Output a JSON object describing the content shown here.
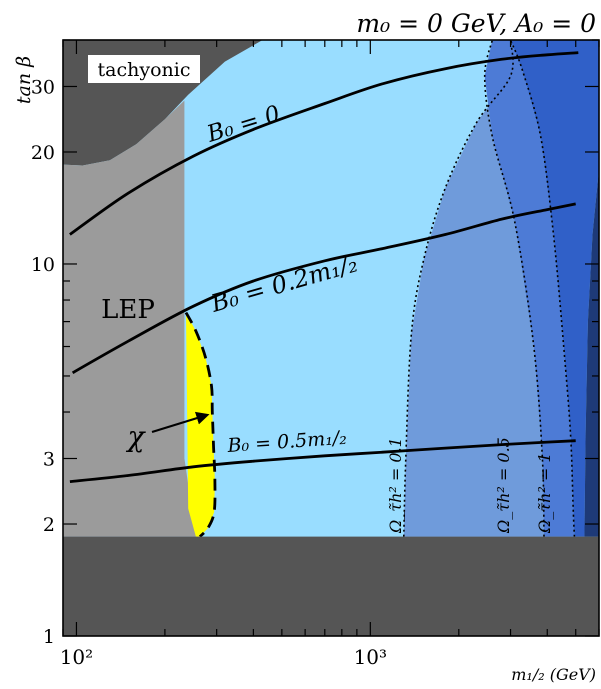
{
  "chart_data": {
    "type": "area",
    "title": "m₀ = 0 GeV, A₀ = 0",
    "xlabel": "m₁/₂ (GeV)",
    "ylabel": "tan β",
    "xscale": "log",
    "yscale": "log",
    "xlim": [
      90,
      6000
    ],
    "ylim": [
      1,
      40
    ],
    "x_ticks": [
      {
        "value": 100,
        "label": "10²"
      },
      {
        "value": 1000,
        "label": "10³"
      }
    ],
    "y_ticks": [
      {
        "value": 1,
        "label": "1"
      },
      {
        "value": 2,
        "label": "2"
      },
      {
        "value": 3,
        "label": "3"
      },
      {
        "value": 10,
        "label": "10"
      },
      {
        "value": 20,
        "label": "20"
      },
      {
        "value": 30,
        "label": "30"
      }
    ],
    "regions": [
      {
        "name": "tachyonic",
        "label": "tachyonic",
        "color": "#555555",
        "x": [
          90,
          90,
          105,
          130,
          160,
          200,
          240,
          320,
          430,
          6000
        ],
        "y": [
          40,
          18.5,
          18.4,
          19.0,
          21.0,
          24.5,
          28.5,
          35.0,
          40,
          40
        ]
      },
      {
        "name": "LEP",
        "label": "LEP",
        "color": "#9b9b9b",
        "x": [
          90,
          90,
          105,
          130,
          160,
          200,
          233,
          233,
          255,
          90
        ],
        "y": [
          1.85,
          18.5,
          18.4,
          19.0,
          21.0,
          24.5,
          27.5,
          3.0,
          1.85,
          1.85
        ]
      },
      {
        "name": "chi-lsp",
        "label": "χ",
        "color": "#ffff00",
        "x": [
          236,
          255,
          275,
          288,
          290,
          293,
          296,
          294,
          280,
          263,
          255,
          240,
          236
        ],
        "y": [
          7.4,
          6.6,
          5.6,
          4.7,
          4.0,
          3.2,
          2.6,
          2.15,
          1.95,
          1.85,
          1.85,
          2.2,
          7.4
        ]
      },
      {
        "name": "relic-0.1-0.5",
        "label": "Ω_τ̃h² = 0.1",
        "color": "#6f9bdb",
        "x": [
          1300,
          1320,
          1380,
          1520,
          1800,
          2300,
          3000,
          3000,
          2600,
          2450,
          2600,
          3100,
          3600,
          3850,
          3900
        ],
        "y": [
          1.85,
          3.0,
          6.5,
          10.3,
          16.0,
          24.0,
          32.0,
          40,
          40,
          32.0,
          22.0,
          13.0,
          6.0,
          3.0,
          1.85
        ]
      },
      {
        "name": "relic-0.5-1",
        "label": "Ω_τ̃h² = 0.5",
        "color": "#4d7bd6",
        "x": [
          3900,
          3850,
          3600,
          3100,
          2600,
          2450,
          2600,
          3000,
          3300,
          3800,
          4200,
          4550,
          4800,
          4900,
          4950
        ],
        "y": [
          1.85,
          3.0,
          6.0,
          13.0,
          22.0,
          32.0,
          40,
          40,
          33.0,
          22.0,
          12.0,
          6.0,
          3.5,
          2.2,
          1.85
        ]
      },
      {
        "name": "relic-1",
        "label": "Ω_τ̃h² = 1",
        "color": "#3060c8",
        "x": [
          4950,
          4900,
          4800,
          4550,
          4200,
          3800,
          3300,
          3000,
          6000,
          6000,
          5700,
          5500,
          5400,
          5350
        ],
        "y": [
          1.85,
          2.2,
          3.5,
          6.0,
          12.0,
          22.0,
          33.0,
          40,
          40,
          18.0,
          12.0,
          7.0,
          3.5,
          1.85
        ]
      },
      {
        "name": "relic-high",
        "color": "#1e3a78",
        "x": [
          5350,
          5400,
          5500,
          5700,
          6000,
          6000
        ],
        "y": [
          1.85,
          3.5,
          7.0,
          12.0,
          18.0,
          1.85
        ]
      }
    ],
    "series": [
      {
        "name": "B₀ = 0",
        "x": [
          95,
          150,
          250,
          400,
          700,
          1100,
          1800,
          2800,
          4000,
          5100
        ],
        "y": [
          12.0,
          15.5,
          19.5,
          23.0,
          27.0,
          30.5,
          33.5,
          35.5,
          36.5,
          37.0
        ]
      },
      {
        "name": "B₀ = 0.2m₁/₂",
        "x": [
          97,
          150,
          250,
          400,
          700,
          1100,
          1800,
          2800,
          4000,
          5000
        ],
        "y": [
          5.1,
          6.2,
          7.7,
          9.0,
          10.2,
          11.0,
          12.0,
          13.2,
          14.0,
          14.5
        ]
      },
      {
        "name": "B₀ = 0.5m₁/₂",
        "x": [
          95,
          150,
          250,
          400,
          700,
          1100,
          1800,
          2800,
          4000,
          5000
        ],
        "y": [
          2.6,
          2.7,
          2.85,
          2.95,
          3.05,
          3.12,
          3.2,
          3.27,
          3.32,
          3.35
        ]
      }
    ],
    "contours": [
      {
        "name": "relic-0.1",
        "label": "Ω_τ̃h² = 0.1",
        "style": "dotted",
        "x": [
          1300,
          1320,
          1380,
          1520,
          1800,
          2300,
          3000,
          3000
        ],
        "y": [
          1.85,
          3.0,
          6.5,
          10.3,
          16.0,
          24.0,
          32.0,
          40
        ]
      },
      {
        "name": "relic-0.5",
        "label": "Ω_τ̃h² = 0.5",
        "style": "dotted",
        "x": [
          3900,
          3850,
          3600,
          3100,
          2600,
          2450,
          2600
        ],
        "y": [
          1.85,
          3.0,
          6.0,
          13.0,
          22.0,
          32.0,
          40
        ]
      },
      {
        "name": "relic-1",
        "label": "Ω_τ̃h² = 1",
        "style": "dotted",
        "x": [
          4950,
          4900,
          4800,
          4550,
          4200,
          3800,
          3300,
          3000
        ],
        "y": [
          1.85,
          2.2,
          3.5,
          6.0,
          12.0,
          22.0,
          33.0,
          40
        ]
      },
      {
        "name": "chi-boundary",
        "label": "χ",
        "style": "dashed",
        "x": [
          236,
          255,
          275,
          288,
          290,
          293,
          296,
          294,
          280,
          263
        ],
        "y": [
          7.4,
          6.6,
          5.6,
          4.7,
          4.0,
          3.2,
          2.6,
          2.15,
          1.95,
          1.85
        ]
      }
    ],
    "bottom_excluded_region": {
      "color": "#555555",
      "y_range": [
        1,
        1.85
      ]
    },
    "annotations": [
      {
        "name": "tachyonic-label",
        "text": "tachyonic"
      },
      {
        "name": "lep-label",
        "text": "LEP"
      },
      {
        "name": "chi-label",
        "text": "χ"
      },
      {
        "name": "b0-zero-label",
        "text": "B₀ = 0"
      },
      {
        "name": "b0-02-label",
        "text": "B₀ = 0.2m₁/₂"
      },
      {
        "name": "b0-05-label",
        "text": "B₀ = 0.5m₁/₂"
      },
      {
        "name": "omega-01-label",
        "text": "Ω_τ̃h² = 0.1"
      },
      {
        "name": "omega-05-label",
        "text": "Ω_τ̃h² = 0.5"
      },
      {
        "name": "omega-1-label",
        "text": "Ω_τ̃h² = 1"
      }
    ],
    "grid": false,
    "legend": "none"
  }
}
